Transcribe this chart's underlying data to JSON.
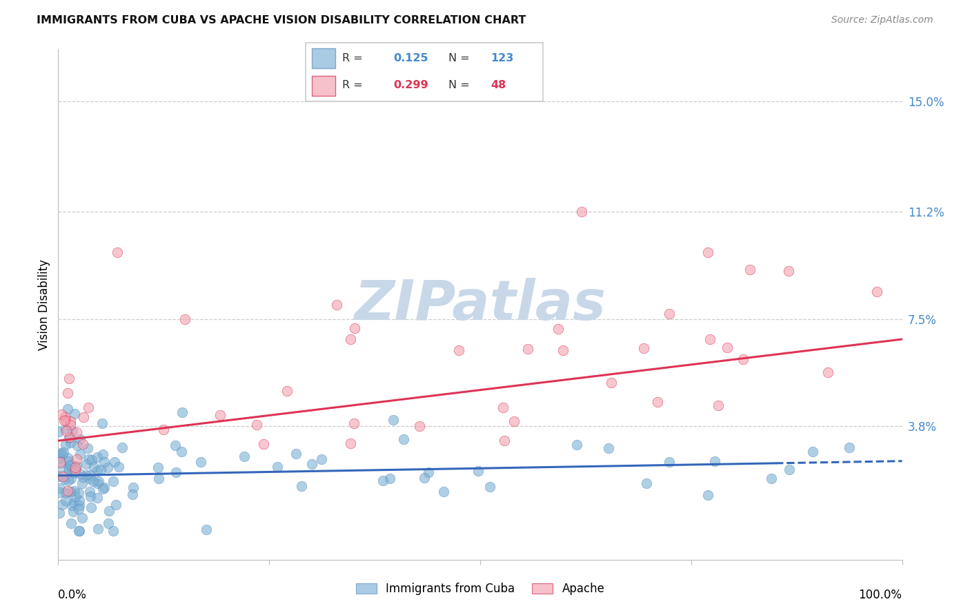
{
  "title": "IMMIGRANTS FROM CUBA VS APACHE VISION DISABILITY CORRELATION CHART",
  "source": "Source: ZipAtlas.com",
  "ylabel": "Vision Disability",
  "ytick_labels": [
    "15.0%",
    "11.2%",
    "7.5%",
    "3.8%"
  ],
  "ytick_values": [
    0.15,
    0.112,
    0.075,
    0.038
  ],
  "xlim": [
    0.0,
    1.0
  ],
  "ylim": [
    -0.008,
    0.168
  ],
  "legend_blue_R": "0.125",
  "legend_blue_N": "123",
  "legend_pink_R": "0.299",
  "legend_pink_N": "48",
  "blue_color": "#7BAFD4",
  "pink_color": "#F4A0B0",
  "blue_line_color": "#3366BB",
  "pink_line_color": "#DD3355",
  "blue_edge_color": "#5588BB",
  "pink_edge_color": "#CC2244",
  "watermark_color": "#C8D8E8",
  "grid_color": "#CCCCCC",
  "spine_color": "#BBBBBB",
  "title_color": "#111111",
  "source_color": "#888888",
  "right_tick_color": "#4488CC"
}
